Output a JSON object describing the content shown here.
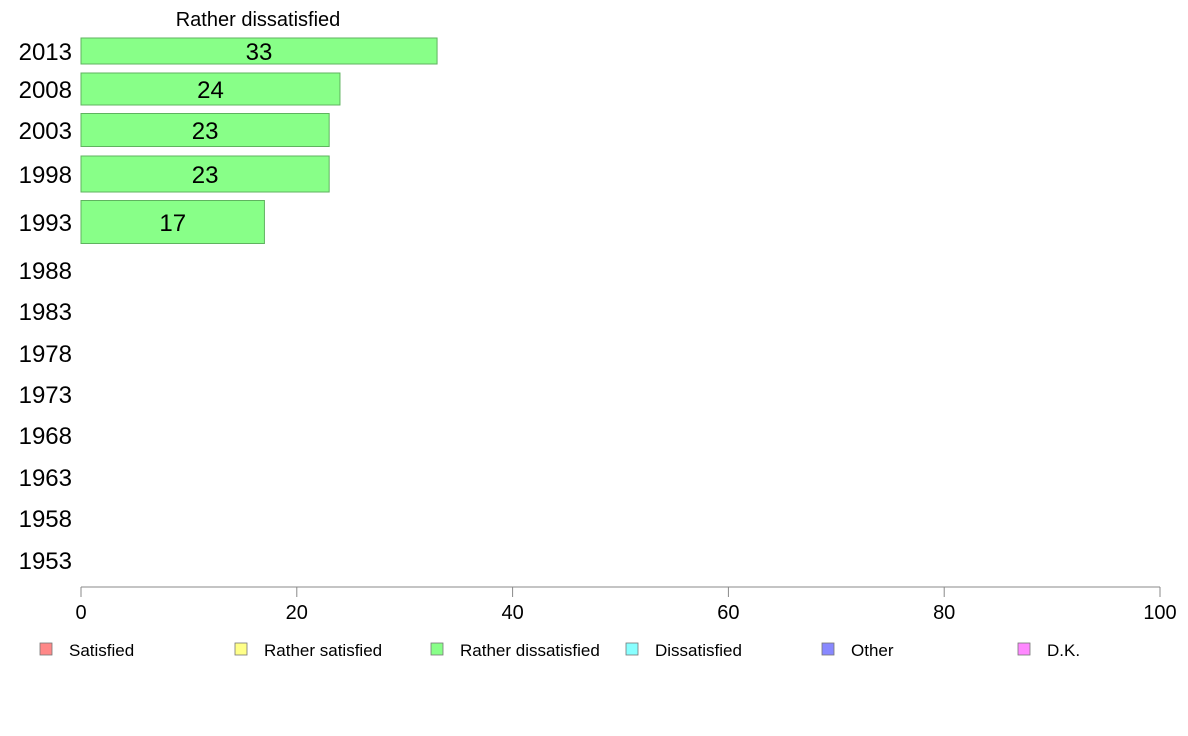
{
  "chart_data": {
    "type": "bar",
    "orientation": "horizontal",
    "title": "Rather dissatisfied",
    "categories": [
      "2013",
      "2008",
      "2003",
      "1998",
      "1993",
      "1988",
      "1983",
      "1978",
      "1973",
      "1968",
      "1963",
      "1958",
      "1953"
    ],
    "series": [
      {
        "name": "Rather dissatisfied",
        "color": "#88ff88",
        "values": [
          33,
          24,
          23,
          23,
          17,
          null,
          null,
          null,
          null,
          null,
          null,
          null,
          null
        ],
        "labels": [
          "33",
          "24",
          "23",
          "23",
          "17",
          "",
          "",
          "",
          "",
          "",
          "",
          "",
          ""
        ]
      }
    ],
    "xlim": [
      0,
      100
    ],
    "xticks": [
      "0",
      "20",
      "40",
      "60",
      "80",
      "100"
    ],
    "grid": false,
    "legend": {
      "placement": "bottom",
      "entries": [
        {
          "label": "Satisfied",
          "color": "#ff8888"
        },
        {
          "label": "Rather satisfied",
          "color": "#ffff88"
        },
        {
          "label": "Rather dissatisfied",
          "color": "#88ff88"
        },
        {
          "label": "Dissatisfied",
          "color": "#88ffff"
        },
        {
          "label": "Other",
          "color": "#8888ff"
        },
        {
          "label": "D.K.",
          "color": "#ff88ff"
        }
      ]
    }
  }
}
